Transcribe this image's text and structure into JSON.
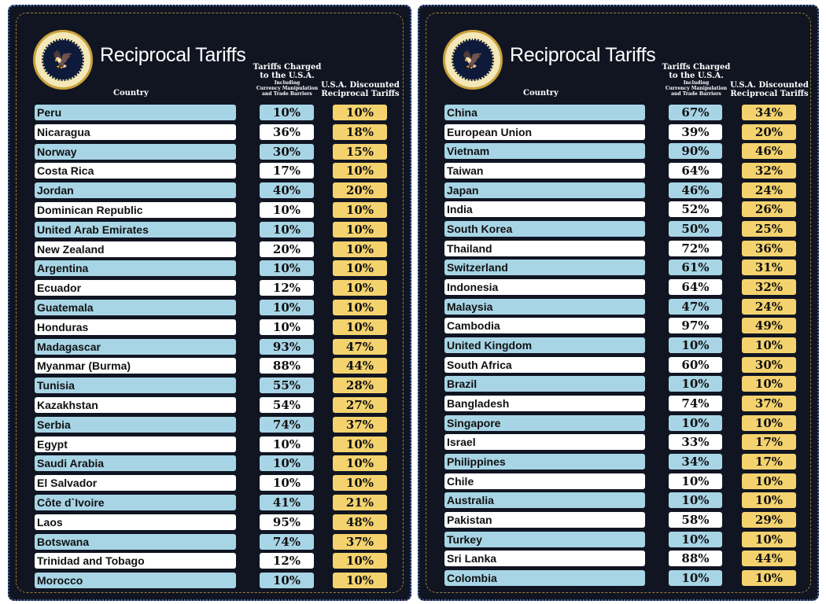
{
  "colors": {
    "background": "#111522",
    "blue_row": "#a7d5e6",
    "white_row": "#ffffff",
    "discount": "#f4d36f"
  },
  "header": {
    "title": "Reciprocal Tariffs",
    "country": "Country",
    "tariffs_line1": "Tariffs Charged",
    "tariffs_line2": "to the U.S.A.",
    "tariffs_sub1": "Including",
    "tariffs_sub2": "Currency Manipulation",
    "tariffs_sub3": "and Trade Barriers",
    "discount_line1": "U.S.A. Discounted",
    "discount_line2": "Reciprocal Tariffs"
  },
  "seal_text": "SEAL OF THE PRESIDENT OF THE UNITED STATES",
  "panels": [
    {
      "rows": [
        [
          "Peru",
          "10%",
          "10%"
        ],
        [
          "Nicaragua",
          "36%",
          "18%"
        ],
        [
          "Norway",
          "30%",
          "15%"
        ],
        [
          "Costa Rica",
          "17%",
          "10%"
        ],
        [
          "Jordan",
          "40%",
          "20%"
        ],
        [
          "Dominican Republic",
          "10%",
          "10%"
        ],
        [
          "United Arab Emirates",
          "10%",
          "10%"
        ],
        [
          "New Zealand",
          "20%",
          "10%"
        ],
        [
          "Argentina",
          "10%",
          "10%"
        ],
        [
          "Ecuador",
          "12%",
          "10%"
        ],
        [
          "Guatemala",
          "10%",
          "10%"
        ],
        [
          "Honduras",
          "10%",
          "10%"
        ],
        [
          "Madagascar",
          "93%",
          "47%"
        ],
        [
          "Myanmar (Burma)",
          "88%",
          "44%"
        ],
        [
          "Tunisia",
          "55%",
          "28%"
        ],
        [
          "Kazakhstan",
          "54%",
          "27%"
        ],
        [
          "Serbia",
          "74%",
          "37%"
        ],
        [
          "Egypt",
          "10%",
          "10%"
        ],
        [
          "Saudi Arabia",
          "10%",
          "10%"
        ],
        [
          "El Salvador",
          "10%",
          "10%"
        ],
        [
          "Côte d`Ivoire",
          "41%",
          "21%"
        ],
        [
          "Laos",
          "95%",
          "48%"
        ],
        [
          "Botswana",
          "74%",
          "37%"
        ],
        [
          "Trinidad and Tobago",
          "12%",
          "10%"
        ],
        [
          "Morocco",
          "10%",
          "10%"
        ]
      ]
    },
    {
      "rows": [
        [
          "China",
          "67%",
          "34%"
        ],
        [
          "European Union",
          "39%",
          "20%"
        ],
        [
          "Vietnam",
          "90%",
          "46%"
        ],
        [
          "Taiwan",
          "64%",
          "32%"
        ],
        [
          "Japan",
          "46%",
          "24%"
        ],
        [
          "India",
          "52%",
          "26%"
        ],
        [
          "South Korea",
          "50%",
          "25%"
        ],
        [
          "Thailand",
          "72%",
          "36%"
        ],
        [
          "Switzerland",
          "61%",
          "31%"
        ],
        [
          "Indonesia",
          "64%",
          "32%"
        ],
        [
          "Malaysia",
          "47%",
          "24%"
        ],
        [
          "Cambodia",
          "97%",
          "49%"
        ],
        [
          "United Kingdom",
          "10%",
          "10%"
        ],
        [
          "South Africa",
          "60%",
          "30%"
        ],
        [
          "Brazil",
          "10%",
          "10%"
        ],
        [
          "Bangladesh",
          "74%",
          "37%"
        ],
        [
          "Singapore",
          "10%",
          "10%"
        ],
        [
          "Israel",
          "33%",
          "17%"
        ],
        [
          "Philippines",
          "34%",
          "17%"
        ],
        [
          "Chile",
          "10%",
          "10%"
        ],
        [
          "Australia",
          "10%",
          "10%"
        ],
        [
          "Pakistan",
          "58%",
          "29%"
        ],
        [
          "Turkey",
          "10%",
          "10%"
        ],
        [
          "Sri Lanka",
          "88%",
          "44%"
        ],
        [
          "Colombia",
          "10%",
          "10%"
        ]
      ]
    }
  ]
}
